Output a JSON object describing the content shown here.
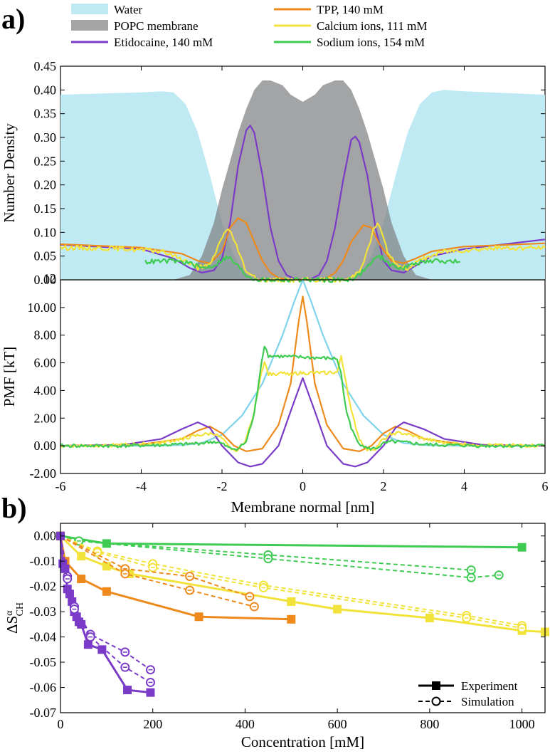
{
  "figure": {
    "label_a": "a)",
    "label_b": "b)"
  },
  "chart_data": [
    {
      "id": "density",
      "type": "area",
      "title": "",
      "xlabel": "",
      "ylabel": "Number Density",
      "xlim": [
        -6,
        6
      ],
      "ylim": [
        0,
        0.45
      ],
      "yticks": [
        "0.45",
        "0.40",
        "0.35",
        "0.30",
        "0.25",
        "0.20",
        "0.15",
        "0.10",
        "0.05",
        "0.00"
      ],
      "legend": [
        {
          "label": "Water",
          "color": "#bfeaf4",
          "kind": "patch"
        },
        {
          "label": "POPC membrane",
          "color": "#a5a5a5",
          "kind": "patch"
        },
        {
          "label": "Etidocaine, 140 mM",
          "color": "#7a3cc8",
          "kind": "line"
        },
        {
          "label": "TPP, 140 mM",
          "color": "#ee8a1c",
          "kind": "line"
        },
        {
          "label": "Calcium ions, 111 mM",
          "color": "#f2e33a",
          "kind": "line"
        },
        {
          "label": "Sodium ions, 154 mM",
          "color": "#3fcb52",
          "kind": "line"
        }
      ],
      "series": [
        {
          "name": "Water",
          "color": "#bfeaf4",
          "fill": true,
          "x": [
            -6,
            -4,
            -3.5,
            -3.2,
            -2.9,
            -2.6,
            -2.3,
            -2,
            -1.7,
            -1.5,
            -1.3,
            -1,
            -0.5,
            0,
            0.5,
            1,
            1.3,
            1.5,
            1.7,
            2,
            2.3,
            2.6,
            2.9,
            3.2,
            3.5,
            4,
            6
          ],
          "y": [
            0.39,
            0.395,
            0.397,
            0.395,
            0.37,
            0.31,
            0.22,
            0.12,
            0.05,
            0.02,
            0.005,
            0,
            0,
            0,
            0,
            0,
            0.005,
            0.02,
            0.05,
            0.12,
            0.22,
            0.31,
            0.37,
            0.395,
            0.4,
            0.397,
            0.39
          ]
        },
        {
          "name": "POPC membrane",
          "color": "#7f8182",
          "fill": true,
          "x": [
            -6,
            -3.2,
            -2.8,
            -2.5,
            -2.2,
            -2,
            -1.8,
            -1.6,
            -1.4,
            -1.2,
            -1,
            -0.8,
            -0.5,
            -0.3,
            0,
            0.3,
            0.5,
            0.8,
            1,
            1.2,
            1.4,
            1.6,
            1.8,
            2,
            2.2,
            2.5,
            2.8,
            3.2,
            6
          ],
          "y": [
            0,
            0,
            0.01,
            0.05,
            0.12,
            0.19,
            0.25,
            0.31,
            0.36,
            0.4,
            0.42,
            0.42,
            0.41,
            0.39,
            0.375,
            0.39,
            0.41,
            0.42,
            0.42,
            0.4,
            0.36,
            0.31,
            0.25,
            0.19,
            0.12,
            0.05,
            0.01,
            0,
            0
          ]
        },
        {
          "name": "Etidocaine, 140 mM",
          "color": "#7a3cc8",
          "x": [
            -6,
            -4,
            -3.2,
            -2.8,
            -2.5,
            -2.2,
            -2,
            -1.8,
            -1.6,
            -1.4,
            -1.3,
            -1.2,
            -1,
            -0.8,
            -0.6,
            -0.4,
            -0.2,
            0,
            0.2,
            0.4,
            0.6,
            0.8,
            1,
            1.2,
            1.3,
            1.4,
            1.6,
            1.8,
            2,
            2.2,
            2.5,
            2.8,
            3.2,
            4,
            6
          ],
          "y": [
            0.074,
            0.065,
            0.045,
            0.025,
            0.015,
            0.02,
            0.045,
            0.12,
            0.24,
            0.315,
            0.325,
            0.31,
            0.22,
            0.11,
            0.04,
            0.01,
            0.002,
            0,
            0.002,
            0.01,
            0.04,
            0.11,
            0.21,
            0.295,
            0.302,
            0.29,
            0.22,
            0.11,
            0.04,
            0.02,
            0.015,
            0.03,
            0.05,
            0.065,
            0.085
          ]
        },
        {
          "name": "TPP, 140 mM",
          "color": "#ee8a1c",
          "x": [
            -6,
            -4,
            -3,
            -2.6,
            -2.3,
            -2,
            -1.8,
            -1.6,
            -1.4,
            -1.2,
            -1,
            -0.8,
            -0.6,
            -0.3,
            0,
            0.3,
            0.6,
            0.8,
            1,
            1.2,
            1.5,
            1.7,
            1.9,
            2.2,
            2.5,
            2.8,
            3.2,
            4,
            6
          ],
          "y": [
            0.075,
            0.068,
            0.055,
            0.04,
            0.035,
            0.06,
            0.11,
            0.13,
            0.12,
            0.08,
            0.04,
            0.015,
            0.004,
            0,
            0,
            0,
            0.004,
            0.015,
            0.04,
            0.08,
            0.115,
            0.11,
            0.075,
            0.04,
            0.035,
            0.045,
            0.06,
            0.07,
            0.077
          ]
        },
        {
          "name": "Calcium ions, 111 mM",
          "color": "#f2e33a",
          "noise": true,
          "x": [
            -6,
            -4.5,
            -3.5,
            -3,
            -2.6,
            -2.3,
            -2.1,
            -1.95,
            -1.85,
            -1.75,
            -1.6,
            -1.4,
            -1.2,
            -1,
            -0.8,
            -0.5,
            0,
            0.5,
            0.8,
            1,
            1.2,
            1.4,
            1.6,
            1.75,
            1.85,
            1.95,
            2.1,
            2.3,
            2.6,
            3,
            3.5,
            4.5,
            6
          ],
          "y": [
            0.068,
            0.066,
            0.06,
            0.045,
            0.025,
            0.03,
            0.07,
            0.1,
            0.105,
            0.095,
            0.06,
            0.02,
            0.004,
            0,
            0,
            0,
            0,
            0,
            0,
            0,
            0.004,
            0.02,
            0.06,
            0.105,
            0.12,
            0.1,
            0.06,
            0.03,
            0.025,
            0.045,
            0.06,
            0.066,
            0.068
          ]
        },
        {
          "name": "Sodium ions, 154 mM",
          "color": "#3fcb52",
          "noise": true,
          "x": [
            -3.9,
            -3.2,
            -2.8,
            -2.5,
            -2.2,
            -2,
            -1.9,
            -1.8,
            -1.6,
            -1.4,
            -1.2,
            -1,
            -0.5,
            0,
            0.5,
            1,
            1.2,
            1.4,
            1.6,
            1.8,
            1.9,
            2,
            2.2,
            2.5,
            2.8,
            3.2,
            3.9
          ],
          "y": [
            0.038,
            0.04,
            0.035,
            0.025,
            0.03,
            0.042,
            0.046,
            0.045,
            0.028,
            0.01,
            0.002,
            0,
            0,
            0,
            0,
            0,
            0.002,
            0.01,
            0.028,
            0.045,
            0.048,
            0.045,
            0.03,
            0.025,
            0.035,
            0.04,
            0.038
          ]
        }
      ]
    },
    {
      "id": "pmf",
      "type": "line",
      "title": "",
      "xlabel": "Membrane normal [nm]",
      "ylabel": "PMF [kT]",
      "xlim": [
        -6,
        6
      ],
      "ylim": [
        -2,
        12
      ],
      "xticks": [
        "-6",
        "-4",
        "-2",
        "0",
        "2",
        "4",
        "6"
      ],
      "yticks": [
        "12",
        "10.00",
        "8.00",
        "6.00",
        "4.00",
        "2.00",
        "0.00",
        "-2.00"
      ],
      "series": [
        {
          "name": "Water",
          "color": "#7fd3ea",
          "x": [
            -6,
            -4,
            -3,
            -2.5,
            -2,
            -1.5,
            -1,
            -0.5,
            -0.2,
            0,
            0.2,
            0.5,
            1,
            1.5,
            2,
            2.5,
            3,
            4,
            6
          ],
          "y": [
            0,
            0,
            0.05,
            0.2,
            0.8,
            2.2,
            4.5,
            8,
            10.5,
            12,
            10.5,
            8,
            4.5,
            2.2,
            0.8,
            0.2,
            0.05,
            0,
            0
          ]
        },
        {
          "name": "TPP, 140 mM",
          "color": "#ee8a1c",
          "x": [
            -6,
            -4,
            -3,
            -2.6,
            -2.3,
            -2,
            -1.7,
            -1.4,
            -1,
            -0.6,
            -0.3,
            -0.1,
            0,
            0.1,
            0.3,
            0.6,
            1,
            1.4,
            1.7,
            2,
            2.3,
            2.6,
            3,
            4,
            6
          ],
          "y": [
            0,
            0.1,
            0.5,
            1.1,
            1.4,
            0.9,
            0,
            -0.4,
            -0.2,
            1.5,
            4.5,
            9,
            10.8,
            9,
            4.5,
            1.5,
            -0.2,
            -0.4,
            0,
            0.9,
            1.4,
            1.1,
            0.5,
            0.1,
            0
          ]
        },
        {
          "name": "Etidocaine, 140 mM",
          "color": "#7a3cc8",
          "x": [
            -6,
            -4.5,
            -3.5,
            -3,
            -2.6,
            -2.3,
            -2,
            -1.6,
            -1.3,
            -1,
            -0.6,
            -0.3,
            0,
            0.3,
            0.6,
            1,
            1.3,
            1.6,
            2,
            2.3,
            2.5,
            3,
            3.5,
            4.5,
            6
          ],
          "y": [
            0,
            0.05,
            0.5,
            1.2,
            1.7,
            1.3,
            0,
            -1.2,
            -1.5,
            -1.3,
            0,
            2.5,
            4.9,
            2.5,
            0,
            -1.3,
            -1.5,
            -1.2,
            0,
            1.3,
            1.7,
            1.2,
            0.5,
            0.05,
            0
          ]
        },
        {
          "name": "Calcium ions, 111 mM",
          "color": "#f2e33a",
          "noise": true,
          "x": [
            -6,
            -4.5,
            -3.5,
            -3,
            -2.5,
            -2.2,
            -2,
            -1.8,
            -1.6,
            -1.4,
            -1.2,
            -1.05,
            -0.95,
            -0.85,
            0.85,
            0.95,
            1.05,
            1.2,
            1.4,
            1.6,
            1.8,
            2,
            2.2,
            2.5,
            3,
            3.5,
            4.5,
            6
          ],
          "y": [
            0,
            0.05,
            0.2,
            0.5,
            0.8,
            0.9,
            0.5,
            -0.2,
            -0.3,
            0.5,
            2.5,
            5,
            6.1,
            5.2,
            5.3,
            6.4,
            5,
            2.5,
            0.5,
            -0.3,
            -0.2,
            0.5,
            0.9,
            0.9,
            0.5,
            0.2,
            0.05,
            0
          ]
        },
        {
          "name": "Sodium ions, 154 mM",
          "color": "#3fcb52",
          "noise": true,
          "x": [
            -6,
            -4.5,
            -3.5,
            -3,
            -2.5,
            -2.2,
            -2,
            -1.8,
            -1.6,
            -1.4,
            -1.2,
            -1.05,
            -0.95,
            -0.85,
            0.85,
            0.95,
            1.05,
            1.2,
            1.4,
            1.6,
            1.8,
            2,
            2.2,
            2.5,
            3,
            3.5,
            4.5,
            6
          ],
          "y": [
            0,
            0,
            0.05,
            0.1,
            0.2,
            0.3,
            0.15,
            -0.2,
            -0.2,
            0.3,
            2.3,
            5.5,
            7.3,
            6.5,
            6.3,
            5.2,
            3,
            1.2,
            0.2,
            -0.2,
            -0.2,
            0.15,
            0.3,
            0.25,
            0.1,
            0.05,
            0,
            0
          ]
        }
      ]
    },
    {
      "id": "order",
      "type": "line",
      "title": "",
      "xlabel": "Concentration [mM]",
      "ylabel": "ΔS",
      "ylabel_sup": "α",
      "ylabel_sub": "CH",
      "xlim": [
        0,
        1050
      ],
      "ylim": [
        -0.07,
        0.005
      ],
      "xticks": [
        "0",
        "200",
        "400",
        "600",
        "800",
        "1000"
      ],
      "yticks": [
        "0.00",
        "-0.01",
        "-0.02",
        "-0.03",
        "-0.04",
        "-0.05",
        "-0.06",
        "-0.07"
      ],
      "legend": [
        {
          "label": "Experiment",
          "style": "solid"
        },
        {
          "label": "Simulation",
          "style": "dashed"
        }
      ],
      "series": [
        {
          "name": "Sodium ions experiment",
          "color": "#3fcb52",
          "style": "solid",
          "marker": "square",
          "x": [
            0,
            100,
            1000
          ],
          "y": [
            0,
            -0.003,
            -0.0045
          ]
        },
        {
          "name": "Sodium ions simulation A",
          "color": "#3fcb52",
          "style": "dashed",
          "marker": "circle",
          "x": [
            0,
            40,
            450,
            890
          ],
          "y": [
            0,
            -0.002,
            -0.0075,
            -0.0135
          ]
        },
        {
          "name": "Sodium ions simulation B",
          "color": "#3fcb52",
          "style": "dashed",
          "marker": "circle",
          "x": [
            0,
            40,
            450,
            890,
            950
          ],
          "y": [
            0,
            -0.002,
            -0.009,
            -0.0165,
            -0.0155
          ]
        },
        {
          "name": "Calcium ions experiment",
          "color": "#f2e33a",
          "style": "solid",
          "marker": "square",
          "x": [
            0,
            45,
            100,
            150,
            500,
            600,
            800,
            1000,
            1050
          ],
          "y": [
            0,
            -0.008,
            -0.012,
            -0.015,
            -0.026,
            -0.029,
            -0.0325,
            -0.0375,
            -0.038
          ]
        },
        {
          "name": "Calcium ions simulation A",
          "color": "#f2e33a",
          "style": "dashed",
          "marker": "circle",
          "x": [
            0,
            80,
            200,
            440,
            880,
            1000
          ],
          "y": [
            0,
            -0.006,
            -0.011,
            -0.0195,
            -0.0315,
            -0.0355
          ]
        },
        {
          "name": "Calcium ions simulation B",
          "color": "#f2e33a",
          "style": "dashed",
          "marker": "circle",
          "x": [
            0,
            80,
            200,
            440,
            880,
            1000
          ],
          "y": [
            0,
            -0.0065,
            -0.0125,
            -0.0205,
            -0.0325,
            -0.0365
          ]
        },
        {
          "name": "TPP experiment",
          "color": "#ee8a1c",
          "style": "solid",
          "marker": "square",
          "x": [
            0,
            10,
            45,
            100,
            300,
            500
          ],
          "y": [
            0,
            -0.01,
            -0.017,
            -0.022,
            -0.032,
            -0.033
          ]
        },
        {
          "name": "TPP simulation A",
          "color": "#ee8a1c",
          "style": "dashed",
          "marker": "circle",
          "x": [
            0,
            140,
            280,
            410
          ],
          "y": [
            0,
            -0.013,
            -0.016,
            -0.024
          ]
        },
        {
          "name": "TPP simulation B",
          "color": "#ee8a1c",
          "style": "dashed",
          "marker": "circle",
          "x": [
            0,
            140,
            280,
            420
          ],
          "y": [
            0,
            -0.015,
            -0.0215,
            -0.028
          ]
        },
        {
          "name": "Etidocaine experiment",
          "color": "#7a3cc8",
          "style": "solid",
          "marker": "square",
          "x": [
            0,
            5,
            10,
            15,
            20,
            25,
            30,
            35,
            40,
            45,
            60,
            90,
            145,
            195
          ],
          "y": [
            0,
            -0.011,
            -0.013,
            -0.021,
            -0.023,
            -0.026,
            -0.03,
            -0.032,
            -0.034,
            -0.035,
            -0.043,
            -0.045,
            -0.061,
            -0.062
          ]
        },
        {
          "name": "Etidocaine simulation A",
          "color": "#7a3cc8",
          "style": "dashed",
          "marker": "circle",
          "x": [
            0,
            15,
            30,
            65,
            140,
            195
          ],
          "y": [
            0,
            -0.016,
            -0.028,
            -0.039,
            -0.046,
            -0.053
          ]
        },
        {
          "name": "Etidocaine simulation B",
          "color": "#7a3cc8",
          "style": "dashed",
          "marker": "circle",
          "x": [
            0,
            15,
            30,
            65,
            140,
            195
          ],
          "y": [
            0,
            -0.017,
            -0.029,
            -0.04,
            -0.052,
            -0.058
          ]
        }
      ]
    }
  ]
}
